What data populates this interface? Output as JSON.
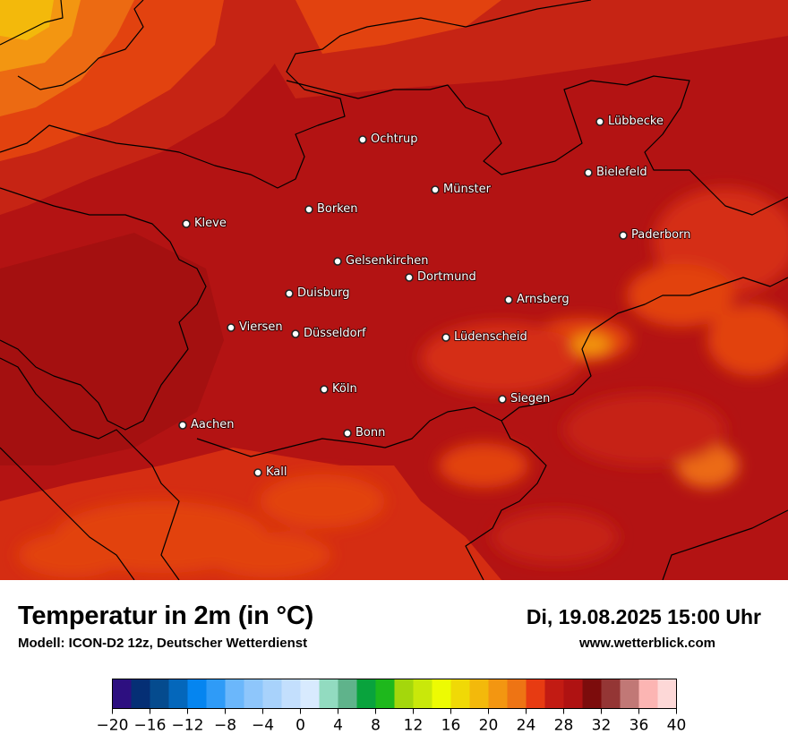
{
  "map": {
    "background_color": "#b31313",
    "cities": [
      {
        "name": "Lübbecke"
      },
      {
        "name": "Ochtrup"
      },
      {
        "name": "Bielefeld"
      },
      {
        "name": "Münster"
      },
      {
        "name": "Borken"
      },
      {
        "name": "Kleve"
      },
      {
        "name": "Paderborn"
      },
      {
        "name": "Gelsenkirchen"
      },
      {
        "name": "Dortmund"
      },
      {
        "name": "Duisburg"
      },
      {
        "name": "Arnsberg"
      },
      {
        "name": "Viersen"
      },
      {
        "name": "Düsseldorf"
      },
      {
        "name": "Lüdenscheid"
      },
      {
        "name": "Köln"
      },
      {
        "name": "Siegen"
      },
      {
        "name": "Aachen"
      },
      {
        "name": "Bonn"
      },
      {
        "name": "Kall"
      }
    ]
  },
  "footer": {
    "title": "Temperatur in 2m (in °C)",
    "subtitle": "Modell: ICON-D2 12z, Deutscher Wetterdienst",
    "datetime": "Di, 19.08.2025 15:00 Uhr",
    "website": "www.wetterblick.com"
  },
  "legend": {
    "min": -20,
    "max": 40,
    "tick_labels": [
      "−20",
      "−16",
      "−12",
      "−8",
      "−4",
      "0",
      "4",
      "8",
      "12",
      "16",
      "20",
      "24",
      "28",
      "32",
      "36",
      "40"
    ],
    "colors": [
      "#2d0f80",
      "#052f75",
      "#054b8e",
      "#0467bb",
      "#0585f0",
      "#2f9bf7",
      "#6bb7fb",
      "#8ec6fb",
      "#a8d2fb",
      "#c3dffd",
      "#d8eafe",
      "#92dbc0",
      "#5fb38b",
      "#09a33d",
      "#1eb81c",
      "#a4d70c",
      "#c9e80a",
      "#edfb03",
      "#f0d906",
      "#f3b90b",
      "#f39611",
      "#ee7414",
      "#e73b12",
      "#c21b13",
      "#af1212",
      "#7c0c0c",
      "#943635",
      "#c17876",
      "#fcb5b3",
      "#fdd8d7"
    ]
  }
}
